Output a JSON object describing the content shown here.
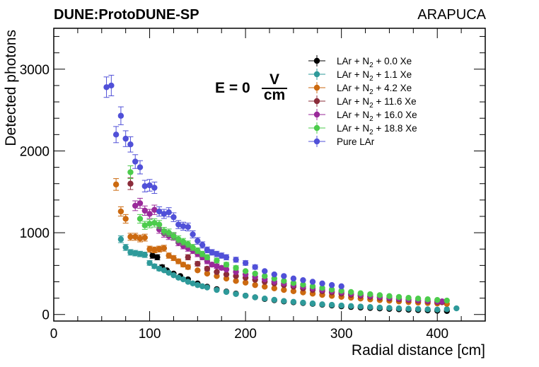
{
  "chart_data": {
    "type": "scatter",
    "experiment_label": "DUNE:ProtoDUNE-SP",
    "detector_label": "ARAPUCA",
    "xlabel": "Radial distance [cm]",
    "ylabel": "Detected photons",
    "xlim": [
      0,
      450
    ],
    "ylim": [
      -80,
      3500
    ],
    "x_ticks": [
      0,
      100,
      200,
      300,
      400
    ],
    "y_ticks": [
      0,
      1000,
      2000,
      3000
    ],
    "annotation": {
      "prefix": "E = 0",
      "numerator": "V",
      "denominator": "cm"
    },
    "legend_position": "top-right",
    "series": [
      {
        "name": "LAr + N2 + 0.0 Xe",
        "label_main": "LAr + N",
        "label_sub": "2",
        "label_tail": " + 0.0 Xe",
        "color": "#000000",
        "points": [
          [
            103,
            720
          ],
          [
            108,
            700
          ],
          [
            113,
            580
          ],
          [
            118,
            540
          ],
          [
            125,
            500
          ],
          [
            132,
            470
          ],
          [
            140,
            430
          ],
          [
            150,
            380
          ],
          [
            160,
            340
          ],
          [
            170,
            310
          ],
          [
            180,
            280
          ],
          [
            190,
            255
          ],
          [
            200,
            230
          ],
          [
            210,
            210
          ],
          [
            220,
            190
          ],
          [
            230,
            175
          ],
          [
            240,
            160
          ],
          [
            250,
            150
          ],
          [
            260,
            140
          ],
          [
            270,
            130
          ],
          [
            280,
            120
          ],
          [
            290,
            110
          ],
          [
            300,
            100
          ],
          [
            310,
            92
          ],
          [
            320,
            85
          ],
          [
            330,
            80
          ],
          [
            340,
            74
          ],
          [
            350,
            68
          ],
          [
            360,
            63
          ],
          [
            370,
            58
          ],
          [
            380,
            54
          ],
          [
            390,
            50
          ],
          [
            400,
            46
          ],
          [
            410,
            43
          ]
        ]
      },
      {
        "name": "LAr + N2 + 1.1 Xe",
        "label_main": "LAr + N",
        "label_sub": "2",
        "label_tail": " + 1.1 Xe",
        "color": "#2e9a9a",
        "points": [
          [
            70,
            920
          ],
          [
            75,
            820
          ],
          [
            80,
            760
          ],
          [
            85,
            750
          ],
          [
            90,
            740
          ],
          [
            95,
            730
          ],
          [
            100,
            630
          ],
          [
            105,
            590
          ],
          [
            110,
            560
          ],
          [
            115,
            540
          ],
          [
            120,
            510
          ],
          [
            125,
            480
          ],
          [
            130,
            450
          ],
          [
            135,
            430
          ],
          [
            140,
            400
          ],
          [
            145,
            380
          ],
          [
            150,
            360
          ],
          [
            155,
            345
          ],
          [
            160,
            330
          ],
          [
            170,
            300
          ],
          [
            180,
            275
          ],
          [
            190,
            250
          ],
          [
            200,
            230
          ],
          [
            210,
            210
          ],
          [
            220,
            195
          ],
          [
            230,
            180
          ],
          [
            240,
            165
          ],
          [
            250,
            155
          ],
          [
            260,
            145
          ],
          [
            270,
            135
          ],
          [
            280,
            125
          ],
          [
            290,
            118
          ],
          [
            300,
            110
          ],
          [
            310,
            103
          ],
          [
            320,
            97
          ],
          [
            330,
            91
          ],
          [
            340,
            85
          ],
          [
            350,
            80
          ],
          [
            360,
            75
          ],
          [
            370,
            71
          ],
          [
            380,
            67
          ],
          [
            390,
            63
          ],
          [
            400,
            60
          ],
          [
            410,
            65
          ],
          [
            420,
            75
          ]
        ]
      },
      {
        "name": "LAr + N2 + 4.2 Xe",
        "label_main": "LAr + N",
        "label_sub": "2",
        "label_tail": " + 4.2 Xe",
        "color": "#cc6a10",
        "points": [
          [
            65,
            1590
          ],
          [
            70,
            1260
          ],
          [
            75,
            1170
          ],
          [
            80,
            950
          ],
          [
            85,
            950
          ],
          [
            90,
            930
          ],
          [
            95,
            940
          ],
          [
            100,
            800
          ],
          [
            105,
            790
          ],
          [
            110,
            800
          ],
          [
            115,
            810
          ],
          [
            120,
            720
          ],
          [
            125,
            690
          ],
          [
            130,
            650
          ],
          [
            135,
            610
          ],
          [
            140,
            580
          ],
          [
            150,
            540
          ],
          [
            160,
            500
          ],
          [
            170,
            470
          ],
          [
            180,
            440
          ],
          [
            190,
            410
          ],
          [
            200,
            390
          ],
          [
            210,
            360
          ],
          [
            220,
            340
          ],
          [
            230,
            320
          ],
          [
            240,
            300
          ],
          [
            250,
            285
          ],
          [
            260,
            270
          ],
          [
            270,
            255
          ],
          [
            280,
            240
          ],
          [
            290,
            228
          ],
          [
            300,
            216
          ],
          [
            310,
            205
          ],
          [
            320,
            195
          ],
          [
            330,
            185
          ],
          [
            340,
            176
          ],
          [
            350,
            168
          ],
          [
            360,
            160
          ],
          [
            370,
            152
          ],
          [
            380,
            145
          ],
          [
            390,
            140
          ],
          [
            400,
            135
          ],
          [
            410,
            130
          ]
        ]
      },
      {
        "name": "LAr + N2 + 11.6 Xe",
        "label_main": "LAr + N",
        "label_sub": "2",
        "label_tail": " + 11.6 Xe",
        "color": "#8b2c3a",
        "points": [
          [
            80,
            1600
          ],
          [
            140,
            700
          ],
          [
            150,
            620
          ],
          [
            160,
            560
          ],
          [
            170,
            520
          ],
          [
            180,
            490
          ],
          [
            190,
            470
          ],
          [
            200,
            450
          ],
          [
            210,
            425
          ],
          [
            220,
            400
          ],
          [
            230,
            380
          ],
          [
            240,
            360
          ],
          [
            250,
            340
          ],
          [
            260,
            320
          ],
          [
            270,
            300
          ],
          [
            280,
            285
          ],
          [
            290,
            270
          ],
          [
            300,
            255
          ],
          [
            310,
            240
          ],
          [
            320,
            228
          ],
          [
            330,
            216
          ],
          [
            340,
            205
          ],
          [
            350,
            195
          ],
          [
            360,
            185
          ],
          [
            370,
            176
          ],
          [
            380,
            168
          ],
          [
            390,
            160
          ],
          [
            400,
            152
          ],
          [
            405,
            150
          ]
        ]
      },
      {
        "name": "LAr + N2 + 16.0 Xe",
        "label_main": "LAr + N",
        "label_sub": "2",
        "label_tail": " + 16.0 Xe",
        "color": "#9a2a9a",
        "points": [
          [
            85,
            1330
          ],
          [
            90,
            1360
          ],
          [
            95,
            1270
          ],
          [
            100,
            1230
          ],
          [
            105,
            1280
          ],
          [
            110,
            1040
          ],
          [
            115,
            990
          ],
          [
            120,
            960
          ],
          [
            125,
            950
          ],
          [
            130,
            880
          ],
          [
            135,
            840
          ],
          [
            140,
            810
          ],
          [
            145,
            780
          ],
          [
            150,
            740
          ],
          [
            155,
            700
          ],
          [
            160,
            650
          ],
          [
            165,
            610
          ],
          [
            170,
            590
          ],
          [
            175,
            570
          ],
          [
            180,
            550
          ],
          [
            190,
            520
          ],
          [
            200,
            490
          ],
          [
            210,
            460
          ],
          [
            220,
            430
          ],
          [
            230,
            400
          ],
          [
            240,
            380
          ],
          [
            250,
            360
          ],
          [
            260,
            340
          ],
          [
            270,
            320
          ],
          [
            280,
            300
          ],
          [
            290,
            285
          ],
          [
            300,
            270
          ],
          [
            310,
            255
          ],
          [
            320,
            240
          ],
          [
            330,
            228
          ],
          [
            340,
            216
          ],
          [
            350,
            205
          ],
          [
            360,
            195
          ],
          [
            370,
            185
          ],
          [
            380,
            176
          ],
          [
            390,
            168
          ],
          [
            400,
            160
          ],
          [
            405,
            160
          ]
        ]
      },
      {
        "name": "LAr + N2 + 18.8 Xe",
        "label_main": "LAr + N",
        "label_sub": "2",
        "label_tail": " + 18.8 Xe",
        "color": "#4ccc4c",
        "points": [
          [
            80,
            1740
          ],
          [
            90,
            1170
          ],
          [
            95,
            1090
          ],
          [
            100,
            1110
          ],
          [
            105,
            1120
          ],
          [
            110,
            1100
          ],
          [
            115,
            1020
          ],
          [
            120,
            1000
          ],
          [
            125,
            960
          ],
          [
            130,
            920
          ],
          [
            135,
            890
          ],
          [
            140,
            860
          ],
          [
            145,
            820
          ],
          [
            150,
            780
          ],
          [
            155,
            740
          ],
          [
            160,
            700
          ],
          [
            170,
            660
          ],
          [
            180,
            610
          ],
          [
            190,
            570
          ],
          [
            200,
            530
          ],
          [
            210,
            500
          ],
          [
            220,
            470
          ],
          [
            230,
            440
          ],
          [
            240,
            410
          ],
          [
            250,
            385
          ],
          [
            260,
            365
          ],
          [
            270,
            345
          ],
          [
            280,
            325
          ],
          [
            290,
            305
          ],
          [
            300,
            290
          ],
          [
            310,
            275
          ],
          [
            320,
            260
          ],
          [
            330,
            248
          ],
          [
            340,
            236
          ],
          [
            350,
            225
          ],
          [
            360,
            214
          ],
          [
            370,
            204
          ],
          [
            380,
            195
          ],
          [
            390,
            186
          ],
          [
            400,
            178
          ],
          [
            410,
            170
          ]
        ]
      },
      {
        "name": "Pure LAr",
        "label_main": "Pure LAr",
        "label_sub": "",
        "label_tail": "",
        "color": "#5050d8",
        "points": [
          [
            55,
            2780
          ],
          [
            60,
            2800
          ],
          [
            65,
            2200
          ],
          [
            70,
            2430
          ],
          [
            75,
            2150
          ],
          [
            80,
            2080
          ],
          [
            85,
            1870
          ],
          [
            90,
            1800
          ],
          [
            95,
            1570
          ],
          [
            100,
            1580
          ],
          [
            105,
            1550
          ],
          [
            110,
            1260
          ],
          [
            115,
            1230
          ],
          [
            120,
            1250
          ],
          [
            125,
            1190
          ],
          [
            130,
            1100
          ],
          [
            135,
            1080
          ],
          [
            140,
            1070
          ],
          [
            145,
            980
          ],
          [
            150,
            900
          ],
          [
            155,
            850
          ],
          [
            160,
            790
          ],
          [
            165,
            760
          ],
          [
            170,
            740
          ],
          [
            175,
            720
          ],
          [
            180,
            700
          ],
          [
            190,
            670
          ],
          [
            200,
            630
          ],
          [
            210,
            580
          ],
          [
            220,
            530
          ],
          [
            230,
            490
          ],
          [
            240,
            470
          ],
          [
            250,
            440
          ],
          [
            260,
            420
          ],
          [
            270,
            400
          ],
          [
            280,
            380
          ],
          [
            290,
            360
          ],
          [
            300,
            345
          ]
        ]
      }
    ]
  }
}
